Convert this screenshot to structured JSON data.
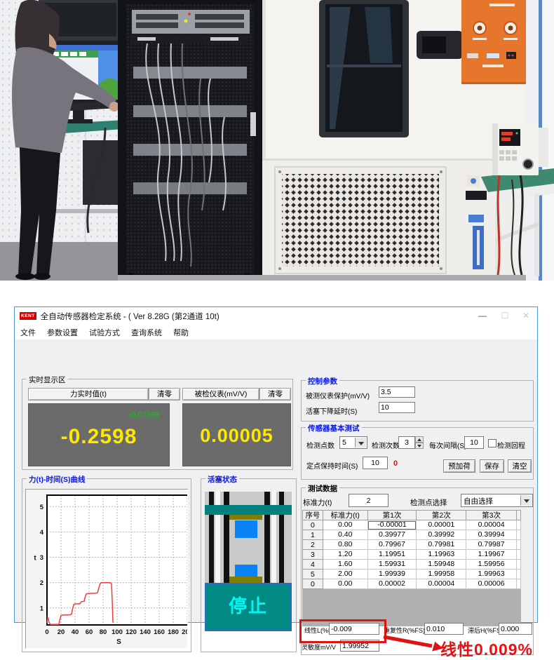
{
  "window": {
    "logo_text": "KENT",
    "title": "全自动传感器检定系统 - ( Ver 8.28G (第2通道  10t)",
    "controls": {
      "minimize": "—",
      "maximize": "☐",
      "close": "✕"
    }
  },
  "menu": {
    "items": [
      "文件",
      "参数设置",
      "试验方式",
      "查询系统",
      "帮助"
    ]
  },
  "realtime": {
    "group_label": "实时显示区",
    "force_header": "力实时值(t)",
    "clear_label": "清零",
    "meter_header": "被检仪表(mV/V)",
    "force_aux_value": "-0.07399",
    "force_value": "-0.2598",
    "meter_value": "0.00005"
  },
  "chart_data": {
    "type": "line",
    "title": "力(t)-时间(S)曲线",
    "xlabel": "S",
    "ylabel": "t",
    "xlim": [
      0,
      205
    ],
    "ylim": [
      0.33,
      5.45
    ],
    "x_ticks": [
      0,
      20,
      40,
      60,
      80,
      100,
      120,
      140,
      160,
      180,
      200
    ],
    "y_ticks": [
      1,
      2,
      3,
      4,
      5
    ],
    "grid": true,
    "line_color": "#f23d3d",
    "series": [
      {
        "name": "力(t)-时间(S)",
        "points": [
          [
            0,
            0.4
          ],
          [
            1,
            0.62
          ],
          [
            2,
            0.58
          ],
          [
            3,
            0.42
          ],
          [
            5,
            0.35
          ],
          [
            17,
            0.35
          ],
          [
            18,
            0.5
          ],
          [
            20,
            0.7
          ],
          [
            23,
            0.72
          ],
          [
            33,
            0.73
          ],
          [
            35,
            0.76
          ],
          [
            36,
            0.9
          ],
          [
            38,
            1.13
          ],
          [
            40,
            1.16
          ],
          [
            47,
            1.17
          ],
          [
            49,
            1.25
          ],
          [
            53,
            1.26
          ],
          [
            54,
            1.4
          ],
          [
            56,
            1.55
          ],
          [
            58,
            1.57
          ],
          [
            70,
            1.58
          ],
          [
            72,
            1.6
          ],
          [
            74,
            1.8
          ],
          [
            76,
            1.97
          ],
          [
            78,
            2.0
          ],
          [
            90,
            2.0
          ],
          [
            92,
            1.96
          ],
          [
            93,
            1.3
          ],
          [
            94,
            0.45
          ],
          [
            95,
            0.42
          ]
        ]
      }
    ]
  },
  "piston": {
    "group_label": "活塞状态",
    "stop_label": "停止"
  },
  "control_params": {
    "group_label": "控制参数",
    "fields": [
      {
        "label": "被测仪表保护(mV/V)",
        "value": "3.5"
      },
      {
        "label": "活塞下降延时(S)",
        "value": "10"
      }
    ]
  },
  "basic_test": {
    "group_label": "传感器基本测试",
    "points_label": "检测点数",
    "points_value": "5",
    "times_label": "检测次数",
    "times_value": "3",
    "interval_label": "每次间隔(S)",
    "interval_value": "10",
    "return_label": "检测回程",
    "hold_label": "定点保持时间(S)",
    "hold_value": "10",
    "hold_status": "0",
    "preload_label": "预加荷",
    "save_label": "保存",
    "clear_label": "清空"
  },
  "test_data": {
    "group_label": "测试数据",
    "std_force_label": "标准力(t)",
    "std_force_value": "2",
    "point_select_label": "检测点选择",
    "point_select_value": "自由选择",
    "table": {
      "headers": [
        "序号",
        "标准力(t)",
        "第1次",
        "第2次",
        "第3次"
      ],
      "rows": [
        [
          "0",
          "0.00",
          "-0.00001",
          "0.00001",
          "0.00004"
        ],
        [
          "1",
          "0.40",
          "0.39977",
          "0.39992",
          "0.39994"
        ],
        [
          "2",
          "0.80",
          "0.79967",
          "0.79981",
          "0.79987"
        ],
        [
          "3",
          "1.20",
          "1.19951",
          "1.19963",
          "1.19967"
        ],
        [
          "4",
          "1.60",
          "1.59931",
          "1.59948",
          "1.59956"
        ],
        [
          "5",
          "2.00",
          "1.99939",
          "1.99958",
          "1.99963"
        ],
        [
          "0",
          "0.00",
          "0.00002",
          "0.00004",
          "0.00006"
        ]
      ]
    },
    "linearity_label": "线性L(%FS)",
    "linearity_value": "-0.009",
    "repeatability_label": "重复性R(%FS)",
    "repeatability_value": "0.010",
    "hysteresis_label": "滞后H(%FS)",
    "hysteresis_value": "0.000",
    "sensitivity_label": "灵敏度mV/V",
    "sensitivity_value": "1.99952"
  },
  "annotation": {
    "text": "线性0.009%",
    "color": "#e81010"
  }
}
